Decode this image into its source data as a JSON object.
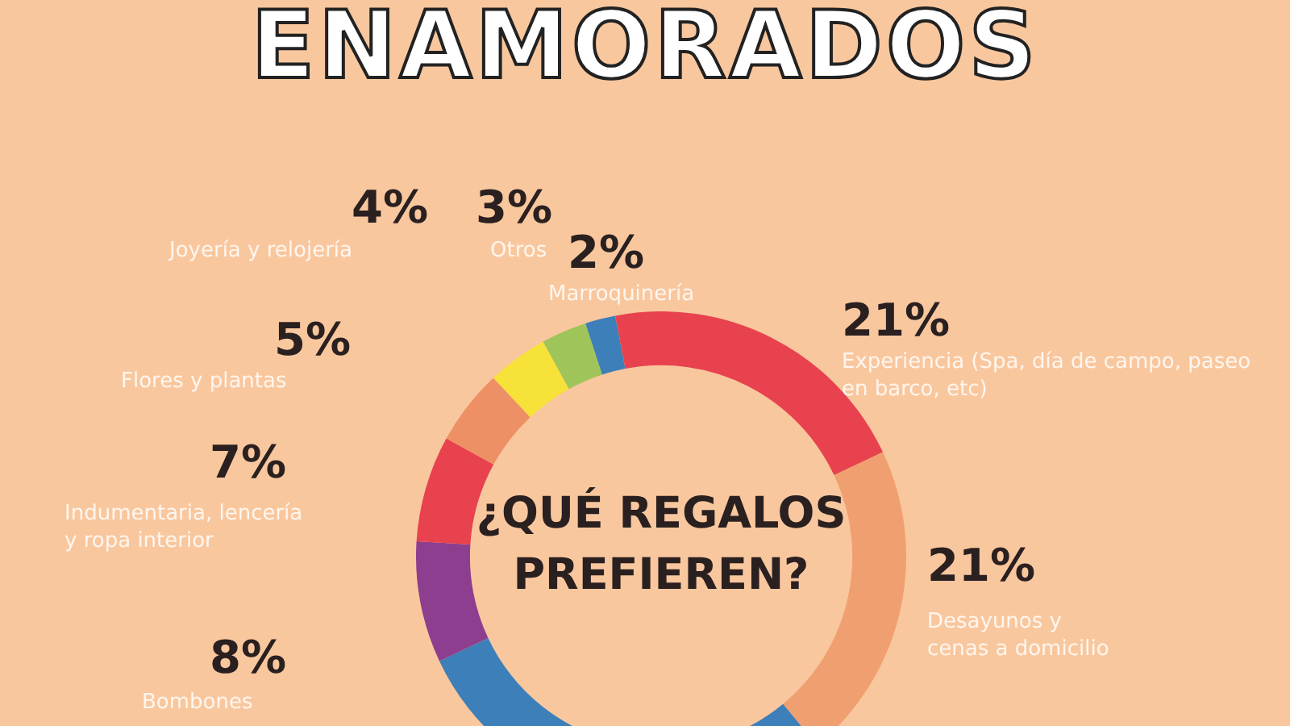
{
  "chart_data": {
    "type": "donut",
    "title": "ENAMORADOS",
    "subtitle": "¿QUÉ REGALOS PREFIEREN?",
    "categories": [
      "Marroquinería",
      "Experiencia (Spa, día de campo, paseo en barco, etc)",
      "Desayunos y cenas a domicilio",
      null,
      "Bombones",
      "Indumentaria, lencería y ropa interior",
      "Flores y plantas",
      "Joyería y relojería",
      "Otros"
    ],
    "values": [
      2,
      21,
      21,
      29,
      8,
      7,
      5,
      4,
      3
    ],
    "value_labels": [
      "2%",
      "21%",
      "21%",
      null,
      "8%",
      "7%",
      "5%",
      "4%",
      "3%"
    ],
    "colors": [
      "#3d7fb8",
      "#e8424f",
      "#f0a070",
      "#3d7fb8",
      "#8e3e8e",
      "#e8424f",
      "#ee9066",
      "#f7e23a",
      "#9fc55a"
    ],
    "legend": false
  }
}
